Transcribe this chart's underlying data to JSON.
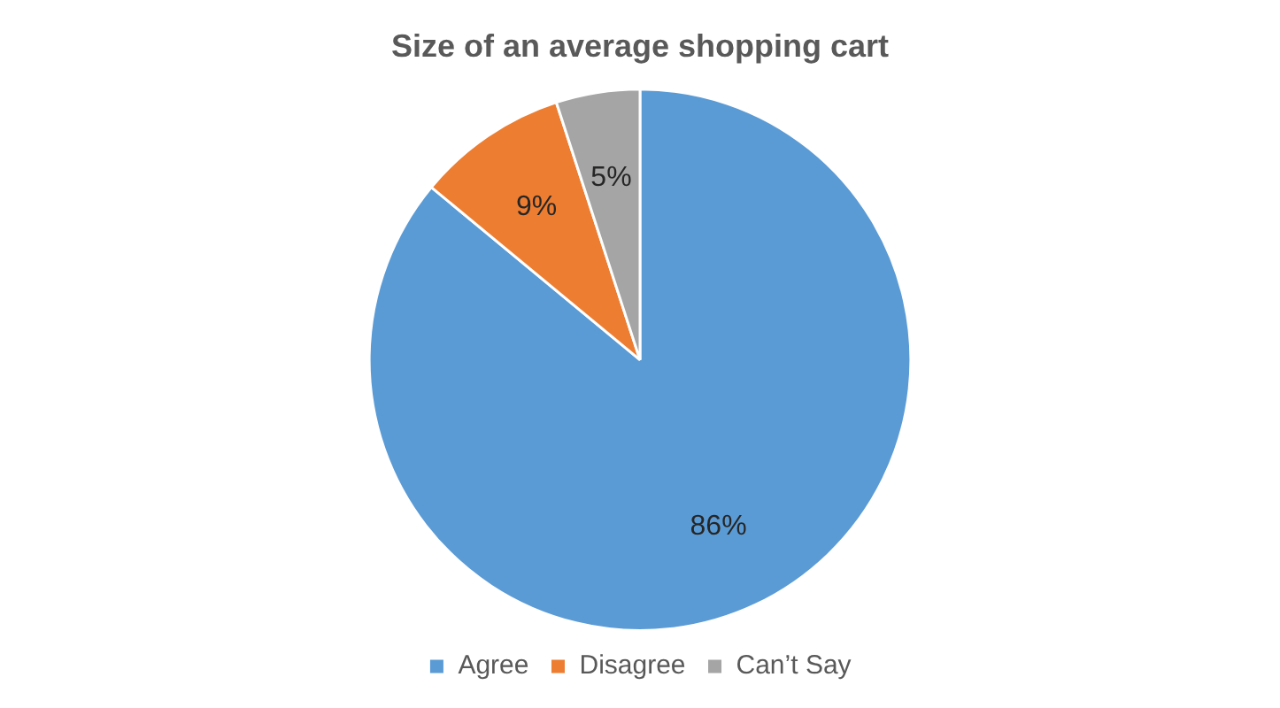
{
  "chart_data": {
    "type": "pie",
    "title": "Size of an average shopping cart",
    "categories": [
      "Agree",
      "Disagree",
      "Can’t Say"
    ],
    "values": [
      86,
      9,
      5
    ],
    "colors": [
      "#5b9bd5",
      "#ed7d31",
      "#a5a5a5"
    ],
    "value_labels": [
      "86%",
      "9%",
      "5%"
    ],
    "legend": "bottom"
  }
}
